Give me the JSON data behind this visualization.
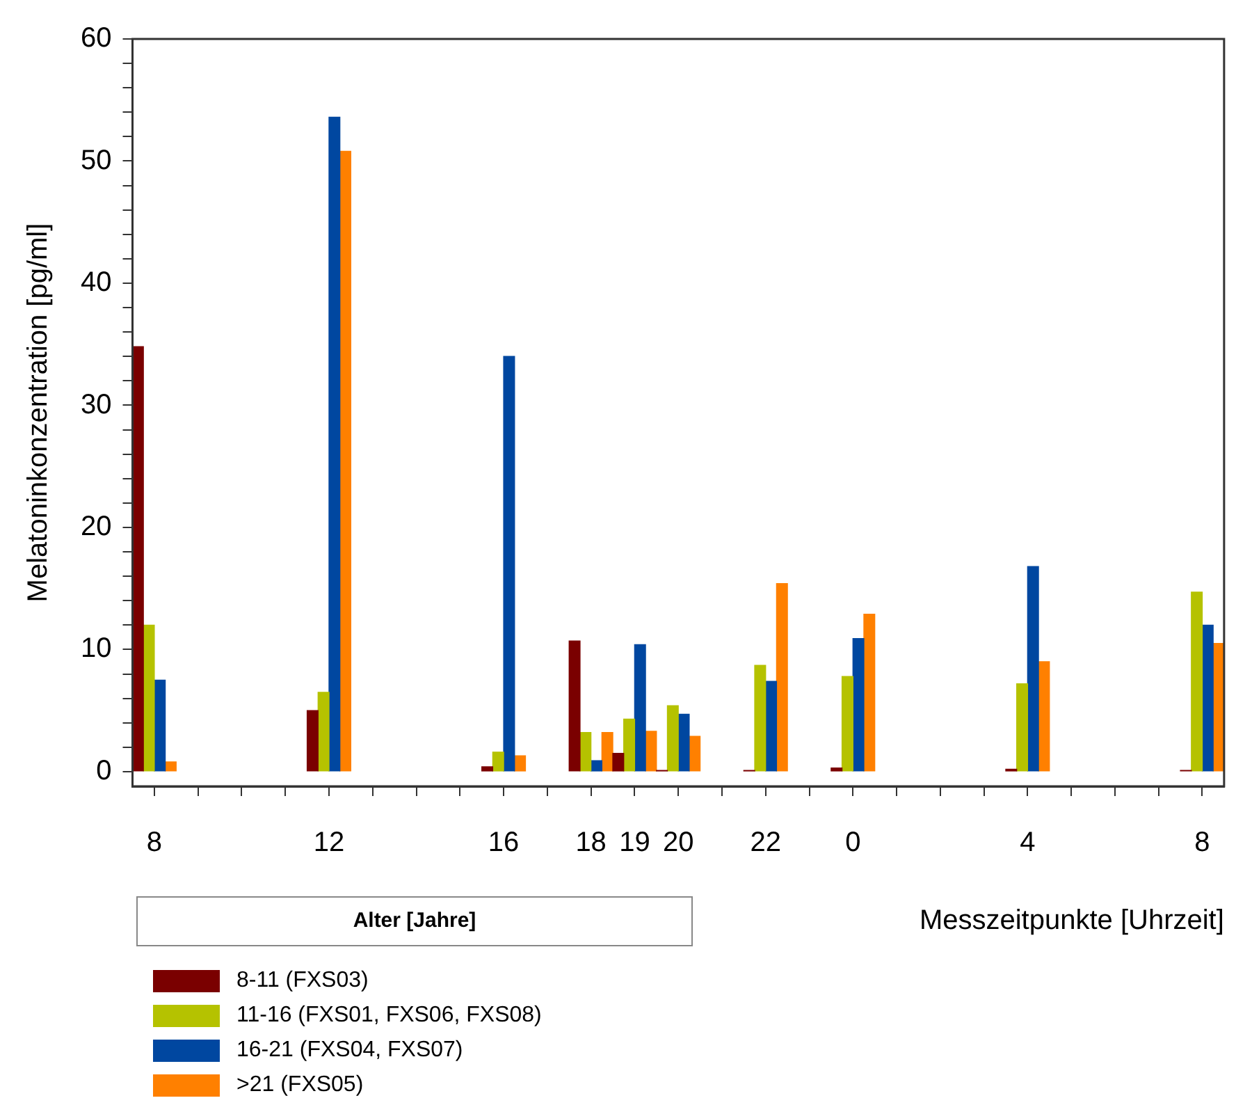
{
  "chart_data": {
    "type": "bar",
    "xlabel": "Messzeitpunkte [Uhrzeit]",
    "ylabel": "Melatoninkonzentration [pg/ml]",
    "legend_title": "Alter [Jahre]",
    "categories": [
      "8",
      null,
      null,
      null,
      "12",
      null,
      null,
      null,
      "16",
      null,
      "18",
      "19",
      "20",
      null,
      "22",
      null,
      "0",
      null,
      null,
      null,
      "4",
      null,
      null,
      null,
      "8"
    ],
    "series": [
      {
        "name": "8-11 (FXS03)",
        "color": "#7a0000",
        "values": [
          34.8,
          null,
          null,
          null,
          5.0,
          null,
          null,
          null,
          0.4,
          null,
          10.7,
          1.5,
          0.1,
          null,
          0.1,
          null,
          0.3,
          null,
          null,
          null,
          0.2,
          null,
          null,
          null,
          0.1
        ]
      },
      {
        "name": "11-16 (FXS01, FXS06, FXS08)",
        "color": "#b5c200",
        "values": [
          12.0,
          null,
          null,
          null,
          6.5,
          null,
          null,
          null,
          1.6,
          null,
          3.2,
          4.3,
          5.4,
          null,
          8.7,
          null,
          7.8,
          null,
          null,
          null,
          7.2,
          null,
          null,
          null,
          14.7
        ]
      },
      {
        "name": "16-21 (FXS04, FXS07)",
        "color": "#0047a0",
        "values": [
          7.5,
          null,
          null,
          null,
          53.6,
          null,
          null,
          null,
          34.0,
          null,
          0.9,
          10.4,
          4.7,
          null,
          7.4,
          null,
          10.9,
          null,
          null,
          null,
          16.8,
          null,
          null,
          null,
          12.0
        ]
      },
      {
        "name": ">21 (FXS05)",
        "color": "#ff8000",
        "values": [
          0.8,
          null,
          null,
          null,
          50.8,
          null,
          null,
          null,
          1.3,
          null,
          3.2,
          3.3,
          2.9,
          null,
          15.4,
          null,
          12.9,
          null,
          null,
          null,
          9.0,
          null,
          null,
          null,
          10.5
        ]
      }
    ],
    "ylim": [
      -1.2,
      60
    ],
    "yticks": [
      0,
      {
        "value": 2,
        "label": null
      },
      {
        "value": 4,
        "label": null
      },
      {
        "value": 6,
        "label": null
      },
      {
        "value": 8,
        "label": null
      },
      10,
      {
        "value": 12,
        "label": null
      },
      {
        "value": 14,
        "label": null
      },
      {
        "value": 16,
        "label": null
      },
      {
        "value": 18,
        "label": null
      },
      20,
      {
        "value": 22,
        "label": null
      },
      {
        "value": 24,
        "label": null
      },
      {
        "value": 26,
        "label": null
      },
      {
        "value": 28,
        "label": null
      },
      30,
      {
        "value": 32,
        "label": null
      },
      {
        "value": 34,
        "label": null
      },
      {
        "value": 36,
        "label": null
      },
      {
        "value": 38,
        "label": null
      },
      40,
      {
        "value": 42,
        "label": null
      },
      {
        "value": 44,
        "label": null
      },
      {
        "value": 46,
        "label": null
      },
      {
        "value": 48,
        "label": null
      },
      50,
      {
        "value": 52,
        "label": null
      },
      {
        "value": 54,
        "label": null
      },
      {
        "value": 56,
        "label": null
      },
      {
        "value": 58,
        "label": null
      },
      60
    ],
    "grid": false,
    "legend": "bottom left"
  }
}
